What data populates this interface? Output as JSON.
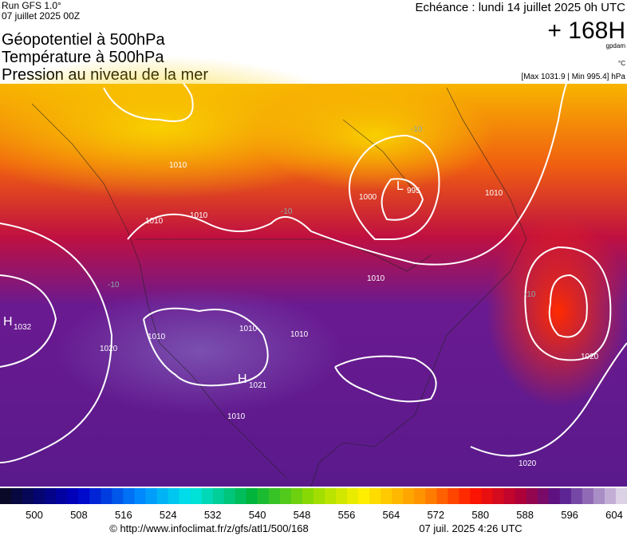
{
  "header": {
    "run": "Run GFS 1.0°",
    "date": "07 juillet 2025 00Z",
    "echeance": "Echéance : lundi 14 juillet 2025 0h UTC",
    "lead": "+ 168H",
    "unit_geo": "gpdam",
    "unit_temp": "°C",
    "range": "[Max 1031.9 | Min 995.4] hPa"
  },
  "titles": [
    "Géopotentiel à 500hPa",
    "Température à 500hPa",
    "Pression au niveau de la mer"
  ],
  "map": {
    "centers": [
      {
        "letter": "H",
        "value": "1032"
      },
      {
        "letter": "L",
        "value": "995"
      },
      {
        "letter": "H",
        "value": "1021"
      }
    ],
    "isobar_labels": [
      "1010",
      "1010",
      "1010",
      "1000",
      "1010",
      "1020",
      "1010",
      "1010",
      "1010",
      "1010",
      "1020",
      "1020",
      "1010"
    ],
    "temp_labels": [
      "-10",
      "-10",
      "-10",
      "-10"
    ]
  },
  "colorbar": {
    "labels": [
      "500",
      "508",
      "516",
      "524",
      "532",
      "540",
      "548",
      "556",
      "564",
      "572",
      "580",
      "588",
      "596",
      "604"
    ]
  },
  "footer": {
    "url": "© http://www.infoclimat.fr/z/gfs/atl1/500/168",
    "time": "07 juil. 2025  4:26 UTC"
  }
}
